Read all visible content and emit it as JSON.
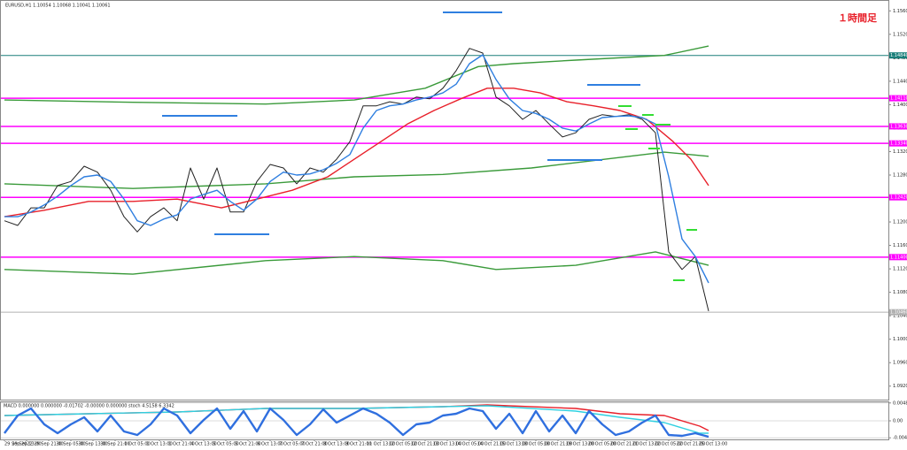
{
  "chart_data": [
    {
      "type": "line",
      "title": "EURUSD,H1  1.10054 1.10068 1.10041 1.10061",
      "annotation": "１時間足",
      "xlim": [
        0,
        160
      ],
      "xticks": [
        {
          "value": 0,
          "label": "29 Sep 2022"
        },
        {
          "value": 5,
          "label": "29 Sep 13:00"
        },
        {
          "value": 10,
          "label": "29 Sep 21:00"
        },
        {
          "value": 15,
          "label": "30 Sep 05:00"
        },
        {
          "value": 20,
          "label": "30 Sep 13:00"
        },
        {
          "value": 25,
          "label": "30 Sep 21:00"
        },
        {
          "value": 30,
          "label": "1 Oct 05:00"
        },
        {
          "value": 35,
          "label": "1 Oct 13:00"
        },
        {
          "value": 40,
          "label": "1 Oct 21:00"
        },
        {
          "value": 45,
          "label": "4 Oct 13:00"
        },
        {
          "value": 50,
          "label": "5 Oct 05:00"
        },
        {
          "value": 55,
          "label": "5 Oct 21:00"
        },
        {
          "value": 60,
          "label": "6 Oct 13:00"
        },
        {
          "value": 65,
          "label": "7 Oct 05:00"
        },
        {
          "value": 70,
          "label": "7 Oct 21:00"
        },
        {
          "value": 75,
          "label": "8 Oct 13:00"
        },
        {
          "value": 80,
          "label": "9 Oct 21:00"
        },
        {
          "value": 85,
          "label": "11 Oct 13:00"
        },
        {
          "value": 90,
          "label": "12 Oct 05:00"
        },
        {
          "value": 95,
          "label": "12 Oct 21:00"
        },
        {
          "value": 100,
          "label": "13 Oct 13:00"
        },
        {
          "value": 105,
          "label": "14 Oct 05:00"
        },
        {
          "value": 110,
          "label": "14 Oct 21:00"
        },
        {
          "value": 115,
          "label": "15 Oct 13:00"
        },
        {
          "value": 120,
          "label": "18 Oct 05:00"
        },
        {
          "value": 125,
          "label": "18 Oct 21:00"
        },
        {
          "value": 130,
          "label": "19 Oct 13:00"
        },
        {
          "value": 135,
          "label": "20 Oct 05:00"
        },
        {
          "value": 140,
          "label": "20 Oct 21:00"
        },
        {
          "value": 145,
          "label": "21 Oct 13:00"
        },
        {
          "value": 150,
          "label": "22 Oct 05:00"
        },
        {
          "value": 155,
          "label": "22 Oct 21:00"
        },
        {
          "value": 160,
          "label": "25 Oct 13:00"
        }
      ],
      "ylim": [
        1.0897,
        1.1574
      ],
      "yticks": [
        {
          "value": 1.092,
          "label": "1.09200"
        },
        {
          "value": 1.096,
          "label": "1.09600"
        },
        {
          "value": 1.1,
          "label": "1.10000"
        },
        {
          "value": 1.104,
          "label": "1.10400"
        },
        {
          "value": 1.108,
          "label": "1.10800"
        },
        {
          "value": 1.112,
          "label": "1.11200"
        },
        {
          "value": 1.116,
          "label": "1.11600"
        },
        {
          "value": 1.12,
          "label": "1.12000"
        },
        {
          "value": 1.124,
          "label": "1.12400"
        },
        {
          "value": 1.128,
          "label": "1.12800"
        },
        {
          "value": 1.132,
          "label": "1.13200"
        },
        {
          "value": 1.136,
          "label": "1.13600"
        },
        {
          "value": 1.14,
          "label": "1.14000"
        },
        {
          "value": 1.144,
          "label": "1.14400"
        },
        {
          "value": 1.148,
          "label": "1.14800"
        },
        {
          "value": 1.152,
          "label": "1.15200"
        },
        {
          "value": 1.156,
          "label": "1.15600"
        }
      ],
      "levels": [
        {
          "value": 1.1484,
          "label": "1.14840",
          "color": "#1a7f7a"
        },
        {
          "value": 1.1411,
          "label": "1.14110",
          "color": "#ff00ff"
        },
        {
          "value": 1.1363,
          "label": "1.13630",
          "color": "#ff00ff"
        },
        {
          "value": 1.1334,
          "label": "1.13340",
          "color": "#ff00ff"
        },
        {
          "value": 1.1242,
          "label": "1.12420",
          "color": "#ff00ff"
        },
        {
          "value": 1.114,
          "label": "1.11400",
          "color": "#ff00ff"
        },
        {
          "value": 1.1046,
          "label": "1.10460",
          "color": "#b0b0b0"
        }
      ],
      "series": [
        {
          "color": "#3a9a3a",
          "x": [
            0,
            29,
            59,
            79,
            95,
            107,
            115,
            129,
            149,
            159
          ],
          "values": [
            1.1408,
            1.1404,
            1.1401,
            1.1408,
            1.1428,
            1.1465,
            1.147,
            1.1476,
            1.1484,
            1.15
          ]
        },
        {
          "color": "#3a9a3a",
          "x": [
            0,
            29,
            59,
            79,
            99,
            119,
            139,
            149,
            159
          ],
          "values": [
            1.1265,
            1.1257,
            1.1265,
            1.1277,
            1.1281,
            1.1292,
            1.131,
            1.1319,
            1.1312
          ]
        },
        {
          "color": "#3a9a3a",
          "x": [
            0,
            29,
            59,
            79,
            99,
            111,
            129,
            147,
            159
          ],
          "values": [
            1.1119,
            1.1111,
            1.1134,
            1.1141,
            1.1134,
            1.1119,
            1.1126,
            1.1149,
            1.1126
          ]
        },
        {
          "color": "#222222",
          "x": [
            0,
            3,
            6,
            9,
            12,
            15,
            18,
            21,
            24,
            27,
            30,
            33,
            36,
            39,
            42,
            45,
            48,
            51,
            54,
            57,
            60,
            63,
            66,
            69,
            72,
            75,
            78,
            81,
            84,
            87,
            90,
            93,
            96,
            99,
            102,
            105,
            108,
            111,
            114,
            117,
            120,
            123,
            126,
            129,
            132,
            135,
            138,
            141,
            144,
            147,
            150,
            153,
            156,
            159
          ],
          "values": [
            1.1202,
            1.1194,
            1.1224,
            1.1224,
            1.1262,
            1.1269,
            1.1295,
            1.1285,
            1.1254,
            1.1209,
            1.1183,
            1.1209,
            1.1224,
            1.1202,
            1.1292,
            1.1239,
            1.1292,
            1.1217,
            1.1217,
            1.1269,
            1.1298,
            1.1292,
            1.1265,
            1.1292,
            1.1285,
            1.1307,
            1.1337,
            1.1398,
            1.1398,
            1.1405,
            1.1401,
            1.1413,
            1.141,
            1.1428,
            1.1458,
            1.1496,
            1.1488,
            1.1413,
            1.1398,
            1.1375,
            1.139,
            1.1367,
            1.1345,
            1.1352,
            1.1375,
            1.1383,
            1.138,
            1.1383,
            1.1375,
            1.1352,
            1.1149,
            1.1119,
            1.1141,
            1.1048
          ]
        },
        {
          "color": "#e8202a",
          "x": [
            0,
            9,
            19,
            29,
            39,
            49,
            57,
            65,
            73,
            79,
            85,
            91,
            97,
            103,
            109,
            115,
            121,
            127,
            133,
            139,
            145,
            151,
            155,
            159
          ],
          "values": [
            1.1209,
            1.122,
            1.1235,
            1.1235,
            1.1239,
            1.1224,
            1.1239,
            1.1254,
            1.1277,
            1.1307,
            1.1337,
            1.1367,
            1.139,
            1.141,
            1.1428,
            1.1428,
            1.142,
            1.1405,
            1.1398,
            1.139,
            1.1375,
            1.1337,
            1.1307,
            1.1262
          ]
        },
        {
          "color": "#2f7fe0",
          "x": [
            0,
            3,
            6,
            9,
            12,
            15,
            18,
            21,
            24,
            27,
            30,
            33,
            36,
            39,
            42,
            45,
            48,
            51,
            54,
            57,
            60,
            63,
            66,
            69,
            72,
            75,
            78,
            81,
            84,
            87,
            90,
            93,
            96,
            99,
            102,
            105,
            108,
            111,
            114,
            117,
            120,
            123,
            126,
            129,
            132,
            135,
            138,
            141,
            144,
            147,
            150,
            153,
            156,
            159
          ],
          "values": [
            1.1209,
            1.1209,
            1.1217,
            1.1229,
            1.1244,
            1.1262,
            1.1277,
            1.128,
            1.1269,
            1.1239,
            1.1202,
            1.1194,
            1.1205,
            1.1212,
            1.1239,
            1.1247,
            1.1254,
            1.1235,
            1.122,
            1.1239,
            1.1269,
            1.1285,
            1.128,
            1.1282,
            1.1289,
            1.13,
            1.1315,
            1.136,
            1.139,
            1.1398,
            1.1401,
            1.1408,
            1.1413,
            1.142,
            1.1435,
            1.147,
            1.1485,
            1.1443,
            1.141,
            1.139,
            1.1385,
            1.1375,
            1.136,
            1.1355,
            1.1367,
            1.1378,
            1.138,
            1.1381,
            1.1378,
            1.1367,
            1.1277,
            1.1171,
            1.1141,
            1.1096
          ]
        }
      ]
    },
    {
      "type": "line",
      "title": "MACD 0.000000 0.000000 -0.01702 -0.00000 0.000000  stoch 4.5158 6.3342",
      "xlim": [
        0,
        160
      ],
      "ylim": [
        -0.005,
        0.005
      ],
      "yticks": [
        -0.004564,
        {
          "value": 0,
          "label": "0.00"
        },
        0.004815
      ],
      "grid": true,
      "series": [
        {
          "color": "#e8202a",
          "x": [
            0,
            19,
            39,
            59,
            79,
            99,
            109,
            129,
            139,
            149,
            157,
            159
          ],
          "values": [
            0.00143,
            0.00191,
            0.00238,
            0.00333,
            0.00333,
            0.00381,
            0.00429,
            0.00333,
            0.00191,
            0.00143,
            -0.00143,
            -0.00262
          ]
        },
        {
          "color": "#30d0e0",
          "x": [
            0,
            19,
            39,
            59,
            79,
            99,
            109,
            129,
            139,
            149,
            157,
            159
          ],
          "values": [
            0.00143,
            0.00191,
            0.00238,
            0.00333,
            0.00333,
            0.00381,
            0.00405,
            0.00262,
            0.00095,
            -0.00047,
            -0.00333,
            -0.00333
          ]
        },
        {
          "color": "#2f6fdf",
          "x": [
            0,
            3,
            6,
            9,
            12,
            15,
            18,
            21,
            24,
            27,
            30,
            33,
            36,
            39,
            42,
            45,
            48,
            51,
            54,
            57,
            60,
            63,
            66,
            69,
            72,
            75,
            78,
            81,
            84,
            87,
            90,
            93,
            96,
            99,
            102,
            105,
            108,
            111,
            114,
            117,
            120,
            123,
            126,
            129,
            132,
            135,
            138,
            141,
            144,
            147,
            150,
            153,
            156,
            159
          ],
          "values": [
            -0.00333,
            0.00143,
            0.00333,
            -0.00095,
            -0.00333,
            -0.00095,
            0.00095,
            -0.00285,
            0.00143,
            -0.00285,
            -0.00381,
            -0.00095,
            0.00333,
            0.00143,
            -0.00333,
            0.00024,
            0.00333,
            -0.00214,
            0.00262,
            -0.00285,
            0.00333,
            0.00024,
            -0.00381,
            -0.00095,
            0.0031,
            -0.00047,
            0.00143,
            0.00333,
            0.00191,
            -0.00047,
            -0.00381,
            -0.00095,
            -0.00047,
            0.00143,
            0.00191,
            0.00333,
            0.00262,
            -0.00214,
            0.00191,
            -0.00333,
            0.00262,
            -0.00285,
            0.00143,
            -0.00333,
            0.00262,
            -0.00095,
            -0.00381,
            -0.00285,
            -0.00047,
            0.00143,
            -0.00381,
            -0.00404,
            -0.00333,
            -0.00428
          ]
        }
      ]
    }
  ]
}
